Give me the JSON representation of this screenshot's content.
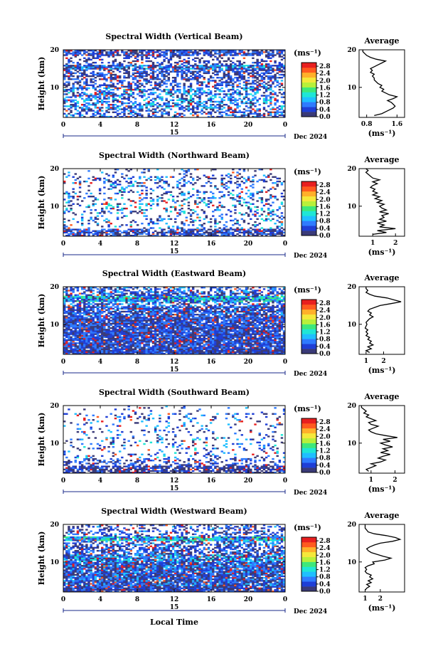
{
  "chart_data": {
    "type": "heatmap",
    "colorbar": {
      "unit": "(ms⁻¹)",
      "ticks": [
        "0.0",
        "0.4",
        "0.8",
        "1.2",
        "1.6",
        "2.0",
        "2.4",
        "2.8"
      ],
      "range": [
        0,
        3.0
      ],
      "colors": [
        "#3a3a78",
        "#1f3fd6",
        "#2f7bff",
        "#1fbfff",
        "#1fe6d6",
        "#3ee87a",
        "#b8f03a",
        "#f5e83a",
        "#ffb02a",
        "#ff5a1f",
        "#e81f1f"
      ]
    },
    "x_axis": {
      "label": "Local Time",
      "ticks": [
        "0",
        "4",
        "8",
        "12",
        "16",
        "20",
        "0"
      ],
      "range": [
        0,
        24
      ],
      "date_day": "15",
      "date_month": "Dec 2024"
    },
    "y_axis": {
      "label": "Height (km)",
      "ticks": [
        "20",
        "10"
      ],
      "range": [
        2,
        20
      ]
    },
    "panels": [
      {
        "title": "Spectral Width (Vertical Beam)",
        "avg_title": "Average",
        "avg_xlabel": "(ms⁻¹)",
        "avg_xticks": [
          {
            "v": 0.8,
            "l": "0.8"
          },
          {
            "v": 1.6,
            "l": "1.6"
          }
        ],
        "avg_xrange": [
          0.6,
          1.8
        ],
        "avg_profile": [
          [
            1.0,
            2.5
          ],
          [
            1.2,
            3
          ],
          [
            1.3,
            3.5
          ],
          [
            1.4,
            4
          ],
          [
            1.5,
            4.5
          ],
          [
            1.55,
            5
          ],
          [
            1.5,
            5.5
          ],
          [
            1.45,
            6
          ],
          [
            1.35,
            6.5
          ],
          [
            1.5,
            7
          ],
          [
            1.6,
            7.5
          ],
          [
            1.4,
            8
          ],
          [
            1.3,
            8.5
          ],
          [
            1.2,
            9
          ],
          [
            1.25,
            9.5
          ],
          [
            1.15,
            10
          ],
          [
            1.2,
            10.5
          ],
          [
            1.1,
            11
          ],
          [
            1.05,
            11.5
          ],
          [
            1.0,
            12
          ],
          [
            1.0,
            12.5
          ],
          [
            0.95,
            13
          ],
          [
            1.0,
            13.5
          ],
          [
            0.9,
            14
          ],
          [
            0.95,
            14.5
          ],
          [
            0.9,
            15
          ],
          [
            1.0,
            15.5
          ],
          [
            1.1,
            16
          ],
          [
            1.2,
            16.5
          ],
          [
            1.3,
            17
          ],
          [
            1.05,
            17.5
          ],
          [
            0.9,
            18
          ],
          [
            0.8,
            18.5
          ],
          [
            0.75,
            19
          ],
          [
            0.7,
            19.5
          ],
          [
            0.7,
            20
          ]
        ],
        "density": [
          [
            2,
            4.5,
            0.5,
            0.45,
            1.0
          ],
          [
            4.5,
            10,
            0.5,
            0.6,
            1.2
          ],
          [
            10,
            12,
            0.45,
            0.4,
            0.9
          ],
          [
            12,
            15,
            0.55,
            0.35,
            0.8
          ],
          [
            15,
            16,
            0.85,
            0.55,
            1.3
          ],
          [
            16,
            17,
            0.4,
            0.3,
            0.6
          ],
          [
            17,
            18.5,
            0.3,
            0.25,
            0.5
          ],
          [
            18.5,
            20,
            0.75,
            0.4,
            0.8
          ]
        ]
      },
      {
        "title": "Spectral Width (Northward Beam)",
        "avg_title": "Average",
        "avg_xlabel": "(ms⁻¹)",
        "avg_xticks": [
          {
            "v": 1,
            "l": "1"
          },
          {
            "v": 2,
            "l": "2"
          }
        ],
        "avg_xrange": [
          0.4,
          2.4
        ],
        "avg_profile": [
          [
            1.0,
            2.5
          ],
          [
            1.6,
            3
          ],
          [
            1.2,
            3.5
          ],
          [
            2.0,
            4
          ],
          [
            1.3,
            4.5
          ],
          [
            1.5,
            5
          ],
          [
            1.2,
            5.5
          ],
          [
            1.6,
            6
          ],
          [
            1.3,
            6.5
          ],
          [
            1.5,
            7
          ],
          [
            1.4,
            7.5
          ],
          [
            1.7,
            8
          ],
          [
            1.3,
            8.5
          ],
          [
            1.6,
            9
          ],
          [
            1.4,
            9.5
          ],
          [
            1.3,
            10
          ],
          [
            1.5,
            10.5
          ],
          [
            1.2,
            11
          ],
          [
            1.4,
            11.5
          ],
          [
            1.1,
            12
          ],
          [
            1.3,
            12.5
          ],
          [
            1.0,
            13
          ],
          [
            1.2,
            13.5
          ],
          [
            1.0,
            14
          ],
          [
            1.1,
            14.5
          ],
          [
            0.9,
            15
          ],
          [
            1.0,
            15.5
          ],
          [
            1.2,
            16
          ],
          [
            1.0,
            16.5
          ],
          [
            1.3,
            17
          ],
          [
            1.0,
            17.5
          ],
          [
            0.9,
            18
          ],
          [
            0.8,
            18.5
          ],
          [
            0.7,
            19
          ],
          [
            0.8,
            19.5
          ],
          [
            0.7,
            20
          ]
        ],
        "density": [
          [
            2,
            4,
            0.7,
            0.35,
            0.9
          ],
          [
            4,
            8,
            0.2,
            0.5,
            1.4
          ],
          [
            8,
            12,
            0.25,
            0.6,
            1.5
          ],
          [
            12,
            16,
            0.2,
            0.5,
            1.3
          ],
          [
            16,
            18,
            0.3,
            0.45,
            1.2
          ],
          [
            18,
            20,
            0.1,
            0.4,
            1.0
          ]
        ]
      },
      {
        "title": "Spectral Width (Eastward Beam)",
        "avg_title": "Average",
        "avg_xlabel": "(ms⁻¹)",
        "avg_xticks": [
          {
            "v": 1,
            "l": "1"
          },
          {
            "v": 2,
            "l": "2"
          }
        ],
        "avg_xrange": [
          0.6,
          3.2
        ],
        "avg_profile": [
          [
            1.2,
            2.5
          ],
          [
            1.0,
            3
          ],
          [
            1.3,
            3.5
          ],
          [
            1.1,
            4
          ],
          [
            1.4,
            4.5
          ],
          [
            1.2,
            5
          ],
          [
            1.3,
            5.5
          ],
          [
            1.1,
            6
          ],
          [
            1.2,
            6.5
          ],
          [
            1.0,
            7
          ],
          [
            1.1,
            7.5
          ],
          [
            1.0,
            8
          ],
          [
            1.1,
            8.5
          ],
          [
            0.95,
            9
          ],
          [
            1.0,
            9.5
          ],
          [
            1.05,
            10
          ],
          [
            1.0,
            10.5
          ],
          [
            1.1,
            11
          ],
          [
            1.2,
            11.5
          ],
          [
            1.4,
            12
          ],
          [
            1.2,
            12.5
          ],
          [
            1.3,
            13
          ],
          [
            1.1,
            13.5
          ],
          [
            1.2,
            14
          ],
          [
            1.5,
            14.5
          ],
          [
            1.8,
            15
          ],
          [
            2.4,
            15.5
          ],
          [
            3.0,
            16
          ],
          [
            2.6,
            16.5
          ],
          [
            2.2,
            17
          ],
          [
            1.5,
            17.5
          ],
          [
            1.2,
            18
          ],
          [
            1.0,
            18.5
          ],
          [
            1.1,
            19
          ],
          [
            1.0,
            19.5
          ],
          [
            1.0,
            20
          ]
        ],
        "density": [
          [
            2,
            3.5,
            0.95,
            0.35,
            0.7
          ],
          [
            3.5,
            12,
            0.9,
            0.4,
            0.8
          ],
          [
            12,
            15,
            0.8,
            0.45,
            0.9
          ],
          [
            15,
            16.2,
            0.5,
            0.5,
            1.1
          ],
          [
            16.2,
            17.6,
            0.95,
            0.85,
            1.5
          ],
          [
            17.6,
            18.5,
            0.6,
            0.45,
            0.9
          ],
          [
            18.5,
            20,
            0.55,
            0.5,
            1.0
          ]
        ]
      },
      {
        "title": "Spectral Width (Southward Beam)",
        "avg_title": "Average",
        "avg_xlabel": "(ms⁻¹)",
        "avg_xticks": [
          {
            "v": 1,
            "l": "1"
          },
          {
            "v": 2,
            "l": "2"
          }
        ],
        "avg_xrange": [
          0.5,
          2.4
        ],
        "avg_profile": [
          [
            0.9,
            2.5
          ],
          [
            0.8,
            3
          ],
          [
            1.0,
            3.5
          ],
          [
            1.2,
            4
          ],
          [
            1.0,
            4.5
          ],
          [
            1.4,
            5
          ],
          [
            1.6,
            5.5
          ],
          [
            1.3,
            6
          ],
          [
            1.5,
            6.5
          ],
          [
            1.8,
            7
          ],
          [
            1.4,
            7.5
          ],
          [
            1.7,
            8
          ],
          [
            1.5,
            8.5
          ],
          [
            1.9,
            9
          ],
          [
            1.6,
            9.5
          ],
          [
            1.4,
            10
          ],
          [
            1.8,
            10.5
          ],
          [
            1.5,
            11
          ],
          [
            2.1,
            11.5
          ],
          [
            1.6,
            12
          ],
          [
            1.2,
            12.5
          ],
          [
            1.0,
            13
          ],
          [
            0.9,
            13.5
          ],
          [
            1.1,
            14
          ],
          [
            1.3,
            14.5
          ],
          [
            1.0,
            15
          ],
          [
            0.9,
            15.5
          ],
          [
            1.2,
            16
          ],
          [
            1.0,
            16.5
          ],
          [
            0.8,
            17
          ],
          [
            0.9,
            17.5
          ],
          [
            0.7,
            18
          ],
          [
            0.8,
            18.5
          ],
          [
            0.7,
            19
          ],
          [
            0.6,
            19.5
          ],
          [
            0.6,
            20
          ]
        ],
        "density": [
          [
            2,
            4,
            0.75,
            0.25,
            0.7
          ],
          [
            4,
            6,
            0.35,
            0.35,
            0.9
          ],
          [
            6,
            12,
            0.15,
            0.55,
            1.4
          ],
          [
            12,
            16,
            0.1,
            0.5,
            1.2
          ],
          [
            16,
            18,
            0.15,
            0.45,
            1.0
          ],
          [
            18,
            20,
            0.05,
            0.4,
            0.9
          ]
        ]
      },
      {
        "title": "Spectral Width (Westward Beam)",
        "avg_title": "Average",
        "avg_xlabel": "(ms⁻¹)",
        "avg_xticks": [
          {
            "v": 1,
            "l": "1"
          },
          {
            "v": 2,
            "l": "2"
          }
        ],
        "avg_xrange": [
          0.6,
          3.6
        ],
        "avg_profile": [
          [
            1.0,
            2.5
          ],
          [
            1.1,
            3
          ],
          [
            1.3,
            3.5
          ],
          [
            1.1,
            4
          ],
          [
            1.4,
            4.5
          ],
          [
            1.2,
            5
          ],
          [
            1.5,
            5.5
          ],
          [
            1.3,
            6
          ],
          [
            1.4,
            6.5
          ],
          [
            1.1,
            7
          ],
          [
            1.0,
            7.5
          ],
          [
            1.1,
            8
          ],
          [
            1.0,
            8.5
          ],
          [
            1.2,
            9
          ],
          [
            1.6,
            9.5
          ],
          [
            1.5,
            10
          ],
          [
            2.3,
            10.5
          ],
          [
            2.7,
            11
          ],
          [
            2.2,
            11.5
          ],
          [
            1.8,
            12
          ],
          [
            1.4,
            12.5
          ],
          [
            1.2,
            13
          ],
          [
            1.1,
            13.5
          ],
          [
            1.3,
            14
          ],
          [
            1.6,
            14.5
          ],
          [
            2.0,
            15
          ],
          [
            2.8,
            15.5
          ],
          [
            3.3,
            16
          ],
          [
            3.0,
            16.5
          ],
          [
            2.4,
            17
          ],
          [
            1.6,
            17.5
          ],
          [
            1.2,
            18
          ],
          [
            1.1,
            18.5
          ],
          [
            1.0,
            19
          ],
          [
            1.0,
            19.5
          ],
          [
            1.0,
            20
          ]
        ],
        "density": [
          [
            2,
            3.5,
            0.9,
            0.35,
            0.8
          ],
          [
            3.5,
            10,
            0.9,
            0.45,
            1.0
          ],
          [
            10,
            12,
            0.85,
            0.6,
            1.4
          ],
          [
            12,
            14.5,
            0.6,
            0.45,
            0.9
          ],
          [
            14.5,
            15.5,
            0.55,
            0.5,
            1.1
          ],
          [
            15.5,
            17,
            0.95,
            0.9,
            1.5
          ],
          [
            17,
            20,
            0.35,
            0.45,
            0.9
          ]
        ]
      }
    ]
  }
}
